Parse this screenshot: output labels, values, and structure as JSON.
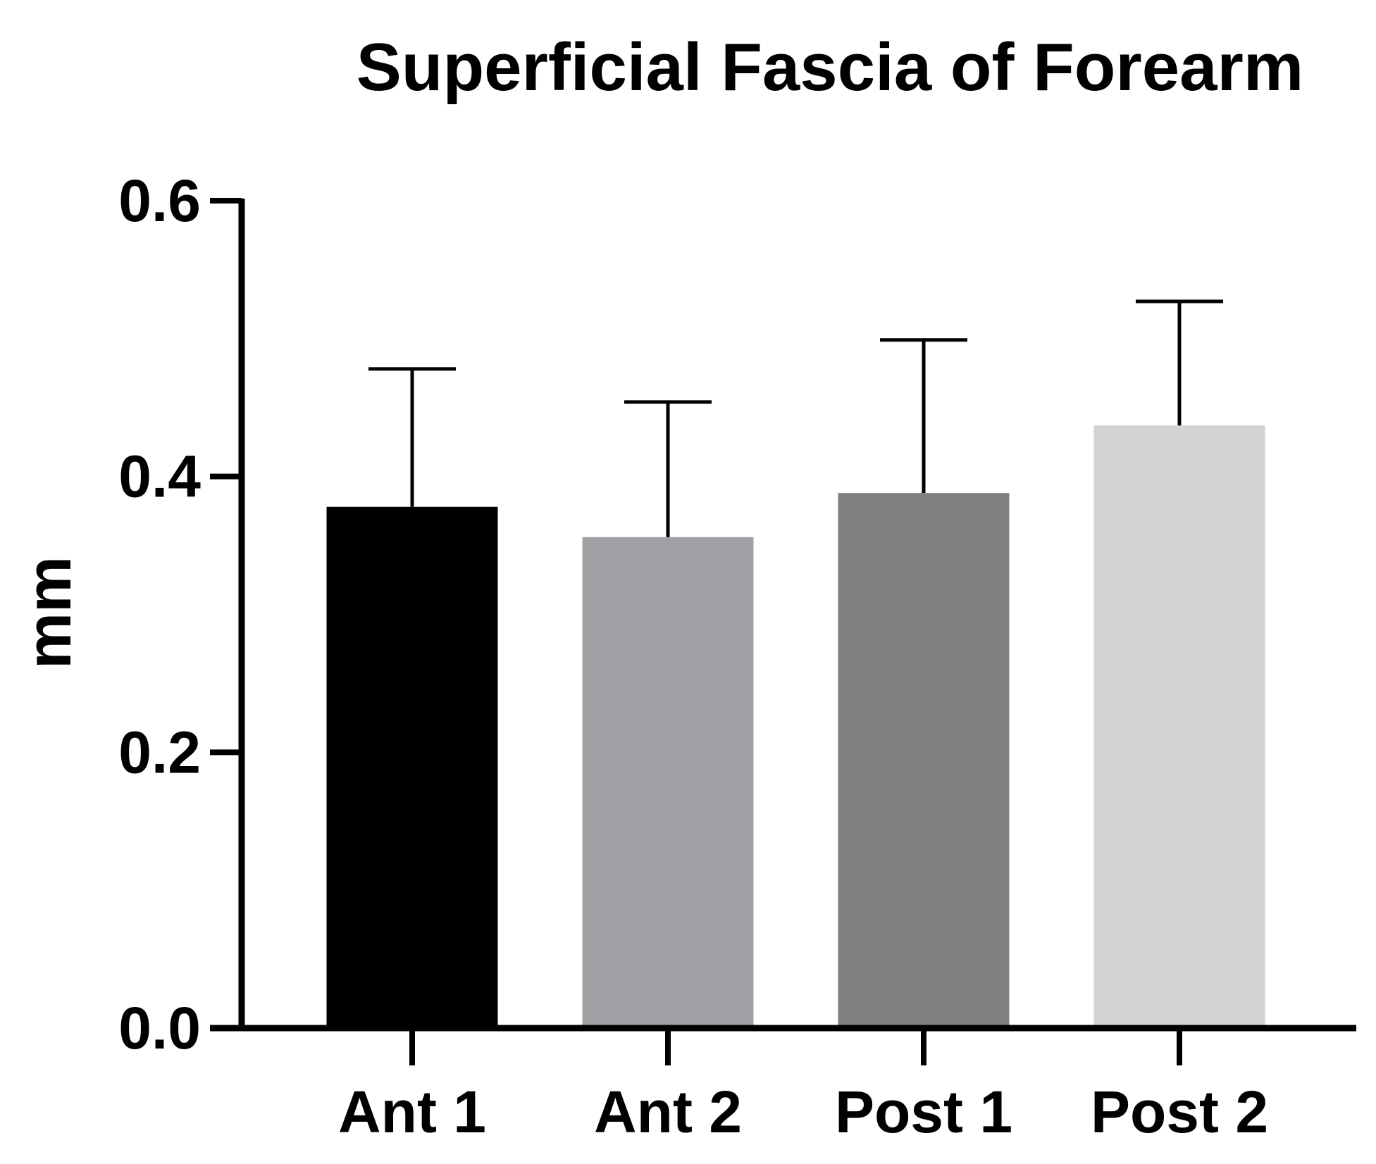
{
  "chart_data": {
    "type": "bar",
    "title": "Superficial Fascia of Forearm",
    "xlabel": "",
    "ylabel": "mm",
    "categories": [
      "Ant 1",
      "Ant 2",
      "Post 1",
      "Post 2"
    ],
    "values": [
      0.378,
      0.356,
      0.388,
      0.437
    ],
    "error_upper": [
      0.478,
      0.454,
      0.499,
      0.527
    ],
    "colors": [
      "#000000",
      "#a1a1a5",
      "#808080",
      "#d3d3d3"
    ],
    "ylim": [
      0,
      0.6
    ],
    "yticks": [
      "0.0",
      "0.2",
      "0.4",
      "0.6"
    ],
    "grid": false,
    "legend": "none"
  }
}
